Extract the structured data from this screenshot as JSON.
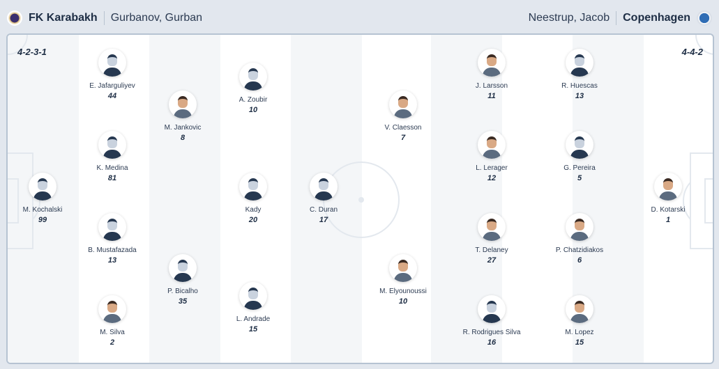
{
  "home": {
    "team": "FK Karabakh",
    "coach": "Gurbanov, Gurban",
    "formation": "4-2-3-1",
    "crest_icon": "karabakh-crest-icon",
    "players": [
      {
        "name": "M. Kochalski",
        "number": "99",
        "avatar": "placeholder"
      },
      {
        "name": "E. Jafarguliyev",
        "number": "44",
        "avatar": "placeholder"
      },
      {
        "name": "K. Medina",
        "number": "81",
        "avatar": "placeholder"
      },
      {
        "name": "B. Mustafazada",
        "number": "13",
        "avatar": "placeholder"
      },
      {
        "name": "M. Silva",
        "number": "2",
        "avatar": "photo"
      },
      {
        "name": "M. Jankovic",
        "number": "8",
        "avatar": "photo"
      },
      {
        "name": "P. Bicalho",
        "number": "35",
        "avatar": "placeholder"
      },
      {
        "name": "A. Zoubir",
        "number": "10",
        "avatar": "placeholder"
      },
      {
        "name": "Kady",
        "number": "20",
        "avatar": "placeholder"
      },
      {
        "name": "L. Andrade",
        "number": "15",
        "avatar": "placeholder"
      },
      {
        "name": "C. Duran",
        "number": "17",
        "avatar": "placeholder"
      }
    ]
  },
  "away": {
    "team": "Copenhagen",
    "coach": "Neestrup, Jacob",
    "formation": "4-4-2",
    "crest_icon": "copenhagen-crest-icon",
    "players": [
      {
        "name": "D. Kotarski",
        "number": "1",
        "avatar": "photo"
      },
      {
        "name": "R. Huescas",
        "number": "13",
        "avatar": "placeholder"
      },
      {
        "name": "G. Pereira",
        "number": "5",
        "avatar": "placeholder"
      },
      {
        "name": "P. Chatzidiakos",
        "number": "6",
        "avatar": "photo"
      },
      {
        "name": "M. Lopez",
        "number": "15",
        "avatar": "photo"
      },
      {
        "name": "J. Larsson",
        "number": "11",
        "avatar": "photo"
      },
      {
        "name": "L. Lerager",
        "number": "12",
        "avatar": "photo"
      },
      {
        "name": "T. Delaney",
        "number": "27",
        "avatar": "photo"
      },
      {
        "name": "R. Rodrigues Silva",
        "number": "16",
        "avatar": "placeholder"
      },
      {
        "name": "V. Claesson",
        "number": "7",
        "avatar": "photo"
      },
      {
        "name": "M. Elyounoussi",
        "number": "10",
        "avatar": "photo"
      }
    ]
  },
  "colors": {
    "stripe": "#f4f6f8",
    "text": "#1d2d44",
    "lines": "#e3e8ee"
  }
}
